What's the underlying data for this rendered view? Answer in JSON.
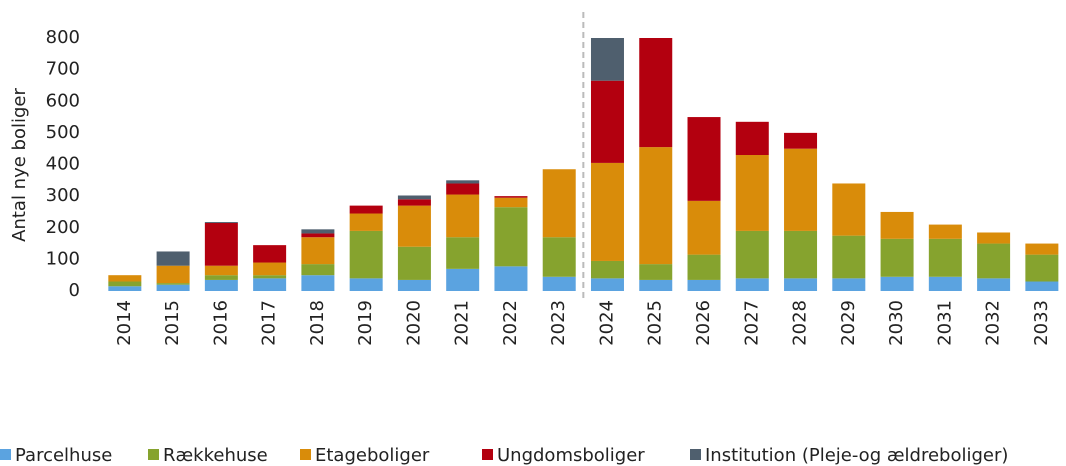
{
  "chart_data": {
    "type": "bar",
    "stacked": true,
    "y_label": "Antal nye boliger",
    "categories": [
      "2014",
      "2015",
      "2016",
      "2017",
      "2018",
      "2019",
      "2020",
      "2021",
      "2022",
      "2023",
      "2024",
      "2025",
      "2026",
      "2027",
      "2028",
      "2029",
      "2030",
      "2031",
      "2032",
      "2033"
    ],
    "series": [
      {
        "name": "Parcelhuse",
        "color": "#5ba3e0",
        "values": [
          15,
          20,
          35,
          40,
          50,
          40,
          35,
          70,
          78,
          45,
          40,
          35,
          35,
          40,
          40,
          40,
          45,
          45,
          40,
          30
        ]
      },
      {
        "name": "Rækkehuse",
        "color": "#86a32e",
        "values": [
          15,
          5,
          15,
          10,
          35,
          150,
          105,
          100,
          187,
          125,
          55,
          50,
          80,
          150,
          150,
          135,
          120,
          120,
          110,
          85
        ]
      },
      {
        "name": "Etageboliger",
        "color": "#d98c0a",
        "values": [
          20,
          55,
          30,
          40,
          85,
          55,
          130,
          135,
          30,
          215,
          310,
          370,
          170,
          240,
          260,
          165,
          85,
          45,
          35,
          35
        ]
      },
      {
        "name": "Ungdomsboliger",
        "color": "#b3000f",
        "values": [
          0,
          0,
          135,
          55,
          12,
          25,
          20,
          35,
          5,
          0,
          260,
          345,
          265,
          105,
          50,
          0,
          0,
          0,
          0,
          0
        ]
      },
      {
        "name": "Institution (Pleje-og ældreboliger)",
        "color": "#4f5f6e",
        "values": [
          0,
          45,
          3,
          0,
          13,
          0,
          12,
          10,
          0,
          0,
          135,
          0,
          0,
          0,
          0,
          0,
          0,
          0,
          0,
          0
        ]
      }
    ],
    "ylim": [
      0,
      800
    ],
    "yticks": [
      0,
      100,
      200,
      300,
      400,
      500,
      600,
      700,
      800
    ],
    "grid": false,
    "legend": "bottom"
  }
}
